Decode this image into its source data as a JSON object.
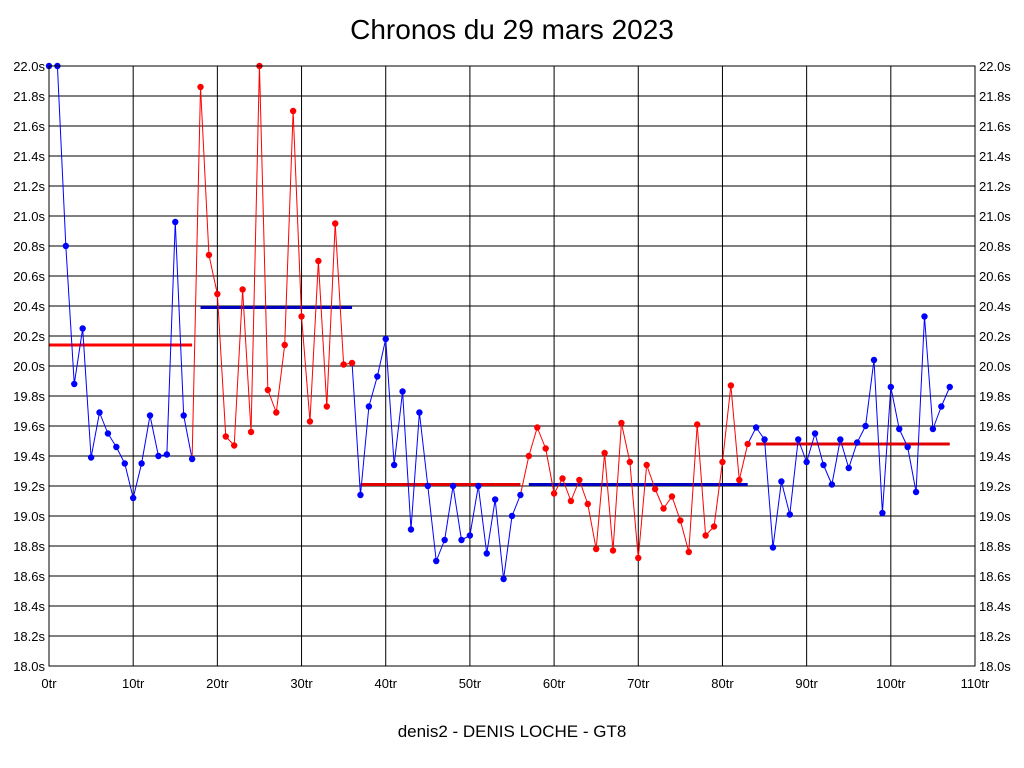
{
  "title": "Chronos du 29 mars 2023",
  "subtitle": "denis2 - DENIS LOCHE - GT8",
  "chart_data": {
    "type": "line",
    "title": "Chronos du 29 mars 2023",
    "xlabel": "",
    "ylabel": "",
    "xlim": [
      0,
      110
    ],
    "ylim": [
      18.0,
      22.0
    ],
    "x_ticks": [
      0,
      10,
      20,
      30,
      40,
      50,
      60,
      70,
      80,
      90,
      100,
      110
    ],
    "x_tick_labels": [
      "0tr",
      "10tr",
      "20tr",
      "30tr",
      "40tr",
      "50tr",
      "60tr",
      "70tr",
      "80tr",
      "90tr",
      "100tr",
      "110tr"
    ],
    "y_ticks": [
      18.0,
      18.2,
      18.4,
      18.6,
      18.8,
      19.0,
      19.2,
      19.4,
      19.6,
      19.8,
      20.0,
      20.2,
      20.4,
      20.6,
      20.8,
      21.0,
      21.2,
      21.4,
      21.6,
      21.8,
      22.0
    ],
    "y_tick_labels": [
      "18.0s",
      "18.2s",
      "18.4s",
      "18.6s",
      "18.8s",
      "19.0s",
      "19.2s",
      "19.4s",
      "19.6s",
      "19.8s",
      "20.0s",
      "20.2s",
      "20.4s",
      "20.6s",
      "20.8s",
      "21.0s",
      "21.2s",
      "21.4s",
      "21.6s",
      "21.8s",
      "22.0s"
    ],
    "grid": true,
    "series": [
      {
        "color": "#0000ff",
        "x": [
          0,
          1,
          2,
          3,
          4,
          5,
          6,
          7,
          8,
          9,
          10,
          11,
          12,
          13,
          14,
          15,
          16,
          17
        ],
        "values": [
          22.0,
          22.0,
          20.8,
          19.88,
          20.25,
          19.39,
          19.69,
          19.55,
          19.46,
          19.35,
          19.12,
          19.35,
          19.67,
          19.4,
          19.41,
          20.96,
          19.67,
          19.38
        ]
      },
      {
        "color": "#ff0000",
        "x": [
          18,
          19,
          20,
          21,
          22,
          23,
          24,
          25,
          26,
          27,
          28,
          29,
          30,
          31,
          32,
          33,
          34,
          35,
          36
        ],
        "values": [
          21.86,
          20.74,
          20.48,
          19.53,
          19.47,
          20.51,
          19.56,
          22.0,
          19.84,
          19.69,
          20.14,
          21.7,
          20.33,
          19.63,
          20.7,
          19.73,
          20.95,
          20.01,
          20.02
        ]
      },
      {
        "color": "#0000ff",
        "x": [
          37,
          38,
          39,
          40,
          41,
          42,
          43,
          44,
          45,
          46,
          47,
          48,
          49,
          50,
          51,
          52,
          53,
          54,
          55,
          56
        ],
        "values": [
          19.14,
          19.73,
          19.93,
          20.18,
          19.34,
          19.83,
          18.91,
          19.69,
          19.2,
          18.7,
          18.84,
          19.2,
          18.84,
          18.87,
          19.2,
          18.75,
          19.11,
          18.58,
          19.0,
          19.14
        ]
      },
      {
        "color": "#ff0000",
        "x": [
          57,
          58,
          59,
          60,
          61,
          62,
          63,
          64,
          65,
          66,
          67,
          68,
          69,
          70,
          71,
          72,
          73,
          74,
          75,
          76,
          77,
          78,
          79,
          80,
          81,
          82,
          83
        ],
        "values": [
          19.4,
          19.59,
          19.45,
          19.15,
          19.25,
          19.1,
          19.24,
          19.08,
          18.78,
          19.42,
          18.77,
          19.62,
          19.36,
          18.72,
          19.34,
          19.18,
          19.05,
          19.13,
          18.97,
          18.76,
          19.61,
          18.87,
          18.93,
          19.36,
          19.87,
          19.24,
          19.48
        ]
      },
      {
        "color": "#0000ff",
        "x": [
          84,
          85,
          86,
          87,
          88,
          89,
          90,
          91,
          92,
          93,
          94,
          95,
          96,
          97,
          98,
          99,
          100,
          101,
          102,
          103,
          104,
          105,
          106,
          107
        ],
        "values": [
          19.59,
          19.51,
          18.79,
          19.23,
          19.01,
          19.51,
          19.36,
          19.55,
          19.34,
          19.21,
          19.51,
          19.32,
          19.49,
          19.6,
          20.04,
          19.02,
          19.86,
          19.58,
          19.46,
          19.16,
          20.33,
          19.58,
          19.73,
          19.86
        ]
      }
    ],
    "averages": [
      {
        "color": "#ff0000",
        "x_start": 0,
        "x_end": 17,
        "value": 20.14
      },
      {
        "color": "#0000c0",
        "x_start": 18,
        "x_end": 36,
        "value": 20.39
      },
      {
        "color": "#e00000",
        "x_start": 37,
        "x_end": 56,
        "value": 19.21
      },
      {
        "color": "#0000c0",
        "x_start": 57,
        "x_end": 83,
        "value": 19.21
      },
      {
        "color": "#e00000",
        "x_start": 84,
        "x_end": 107,
        "value": 19.48
      }
    ]
  }
}
